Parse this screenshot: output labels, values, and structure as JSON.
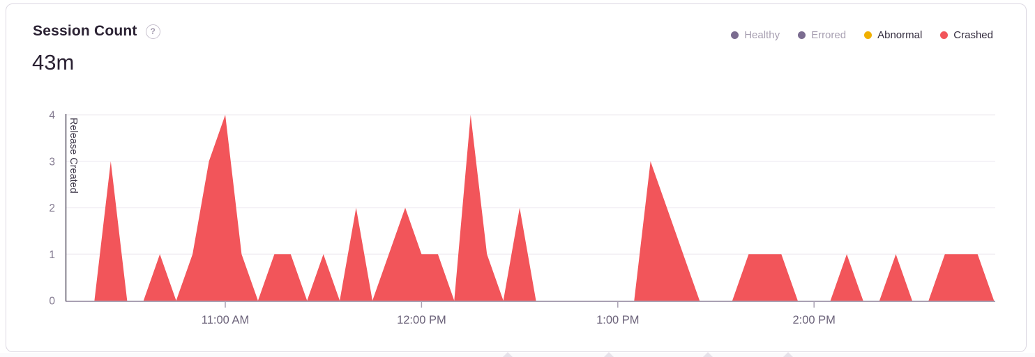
{
  "panel": {
    "title": "Session Count",
    "help_icon": "?",
    "total_value": "43m"
  },
  "legend": {
    "items": [
      {
        "label": "Healthy",
        "dot_color": "#7b6c90",
        "text_color": "#a79fb1"
      },
      {
        "label": "Errored",
        "dot_color": "#7b6c90",
        "text_color": "#a79fb1"
      },
      {
        "label": "Abnormal",
        "dot_color": "#f0b000",
        "text_color": "#322b3d"
      },
      {
        "label": "Crashed",
        "dot_color": "#f2555a",
        "text_color": "#322b3d"
      }
    ]
  },
  "chart_data": {
    "type": "area",
    "title": "Session Count",
    "total_label": "43m",
    "interval_minutes": 5,
    "x_tick_labels": [
      "11:00 AM",
      "12:00 PM",
      "1:00 PM",
      "2:00 PM"
    ],
    "y_ticks": [
      0,
      1,
      2,
      3,
      4
    ],
    "ylim": [
      0,
      4
    ],
    "grid": "horizontal",
    "legend_position": "top-right",
    "annotations": [
      {
        "type": "vertical-line",
        "label": "Release Created",
        "position": "left-edge-of-plot"
      }
    ],
    "series": [
      {
        "name": "Crashed",
        "color": "#f2555a",
        "points": [
          [
            "10:15 AM",
            0
          ],
          [
            "10:20 AM",
            0
          ],
          [
            "10:25 AM",
            3
          ],
          [
            "10:30 AM",
            0
          ],
          [
            "10:35 AM",
            0
          ],
          [
            "10:40 AM",
            1
          ],
          [
            "10:45 AM",
            0
          ],
          [
            "10:50 AM",
            1
          ],
          [
            "10:55 AM",
            3
          ],
          [
            "11:00 AM",
            4
          ],
          [
            "11:05 AM",
            1
          ],
          [
            "11:10 AM",
            0
          ],
          [
            "11:15 AM",
            1
          ],
          [
            "11:20 AM",
            1
          ],
          [
            "11:25 AM",
            0
          ],
          [
            "11:30 AM",
            1
          ],
          [
            "11:35 AM",
            0
          ],
          [
            "11:40 AM",
            2
          ],
          [
            "11:45 AM",
            0
          ],
          [
            "11:50 AM",
            1
          ],
          [
            "11:55 AM",
            2
          ],
          [
            "12:00 PM",
            1
          ],
          [
            "12:05 PM",
            1
          ],
          [
            "12:10 PM",
            0
          ],
          [
            "12:15 PM",
            4
          ],
          [
            "12:20 PM",
            1
          ],
          [
            "12:25 PM",
            0
          ],
          [
            "12:30 PM",
            2
          ],
          [
            "12:35 PM",
            0
          ],
          [
            "12:40 PM",
            0
          ],
          [
            "12:45 PM",
            0
          ],
          [
            "12:50 PM",
            0
          ],
          [
            "12:55 PM",
            0
          ],
          [
            "1:00 PM",
            0
          ],
          [
            "1:05 PM",
            0
          ],
          [
            "1:10 PM",
            3
          ],
          [
            "1:15 PM",
            2
          ],
          [
            "1:20 PM",
            1
          ],
          [
            "1:25 PM",
            0
          ],
          [
            "1:30 PM",
            0
          ],
          [
            "1:35 PM",
            0
          ],
          [
            "1:40 PM",
            1
          ],
          [
            "1:45 PM",
            1
          ],
          [
            "1:50 PM",
            1
          ],
          [
            "1:55 PM",
            0
          ],
          [
            "2:00 PM",
            0
          ],
          [
            "2:05 PM",
            0
          ],
          [
            "2:10 PM",
            1
          ],
          [
            "2:15 PM",
            0
          ],
          [
            "2:20 PM",
            0
          ],
          [
            "2:25 PM",
            1
          ],
          [
            "2:30 PM",
            0
          ],
          [
            "2:35 PM",
            0
          ],
          [
            "2:40 PM",
            1
          ],
          [
            "2:45 PM",
            1
          ],
          [
            "2:50 PM",
            1
          ],
          [
            "2:55 PM",
            0
          ]
        ]
      }
    ]
  },
  "style": {
    "accent_red": "#f2555a",
    "accent_yellow": "#f0b000",
    "muted_purple": "#7b6c90",
    "axis_color": "#a9a1b3",
    "grid_color": "#f2eff4",
    "tick_text": "#6b6279",
    "y_tick_text": "#847b91",
    "release_line": "#595264",
    "release_text": "#413b4c",
    "text_dark": "#2b2233",
    "card_border": "#dcd8e2"
  }
}
